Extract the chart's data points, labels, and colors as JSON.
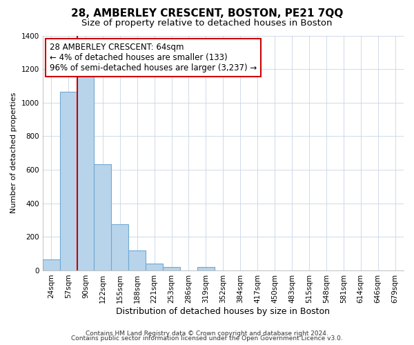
{
  "title": "28, AMBERLEY CRESCENT, BOSTON, PE21 7QQ",
  "subtitle": "Size of property relative to detached houses in Boston",
  "xlabel": "Distribution of detached houses by size in Boston",
  "ylabel": "Number of detached properties",
  "bar_labels": [
    "24sqm",
    "57sqm",
    "90sqm",
    "122sqm",
    "155sqm",
    "188sqm",
    "221sqm",
    "253sqm",
    "286sqm",
    "319sqm",
    "352sqm",
    "384sqm",
    "417sqm",
    "450sqm",
    "483sqm",
    "515sqm",
    "548sqm",
    "581sqm",
    "614sqm",
    "646sqm",
    "679sqm"
  ],
  "bar_values": [
    65,
    1065,
    1155,
    635,
    275,
    120,
    40,
    20,
    0,
    20,
    0,
    0,
    0,
    0,
    0,
    0,
    0,
    0,
    0,
    0,
    0
  ],
  "bar_color": "#b8d4eb",
  "bar_edge_color": "#6fa8d0",
  "highlight_color": "#cc0000",
  "vline_after_index": 1,
  "annotation_text": "28 AMBERLEY CRESCENT: 64sqm\n← 4% of detached houses are smaller (133)\n96% of semi-detached houses are larger (3,237) →",
  "annotation_box_color": "#ffffff",
  "annotation_box_edge": "#cc0000",
  "ylim": [
    0,
    1400
  ],
  "yticks": [
    0,
    200,
    400,
    600,
    800,
    1000,
    1200,
    1400
  ],
  "footer_line1": "Contains HM Land Registry data © Crown copyright and database right 2024.",
  "footer_line2": "Contains public sector information licensed under the Open Government Licence v3.0.",
  "title_fontsize": 11,
  "subtitle_fontsize": 9.5,
  "xlabel_fontsize": 9,
  "ylabel_fontsize": 8,
  "tick_fontsize": 7.5,
  "annotation_fontsize": 8.5,
  "footer_fontsize": 6.5,
  "background_color": "#ffffff",
  "grid_color": "#c8d4e4"
}
